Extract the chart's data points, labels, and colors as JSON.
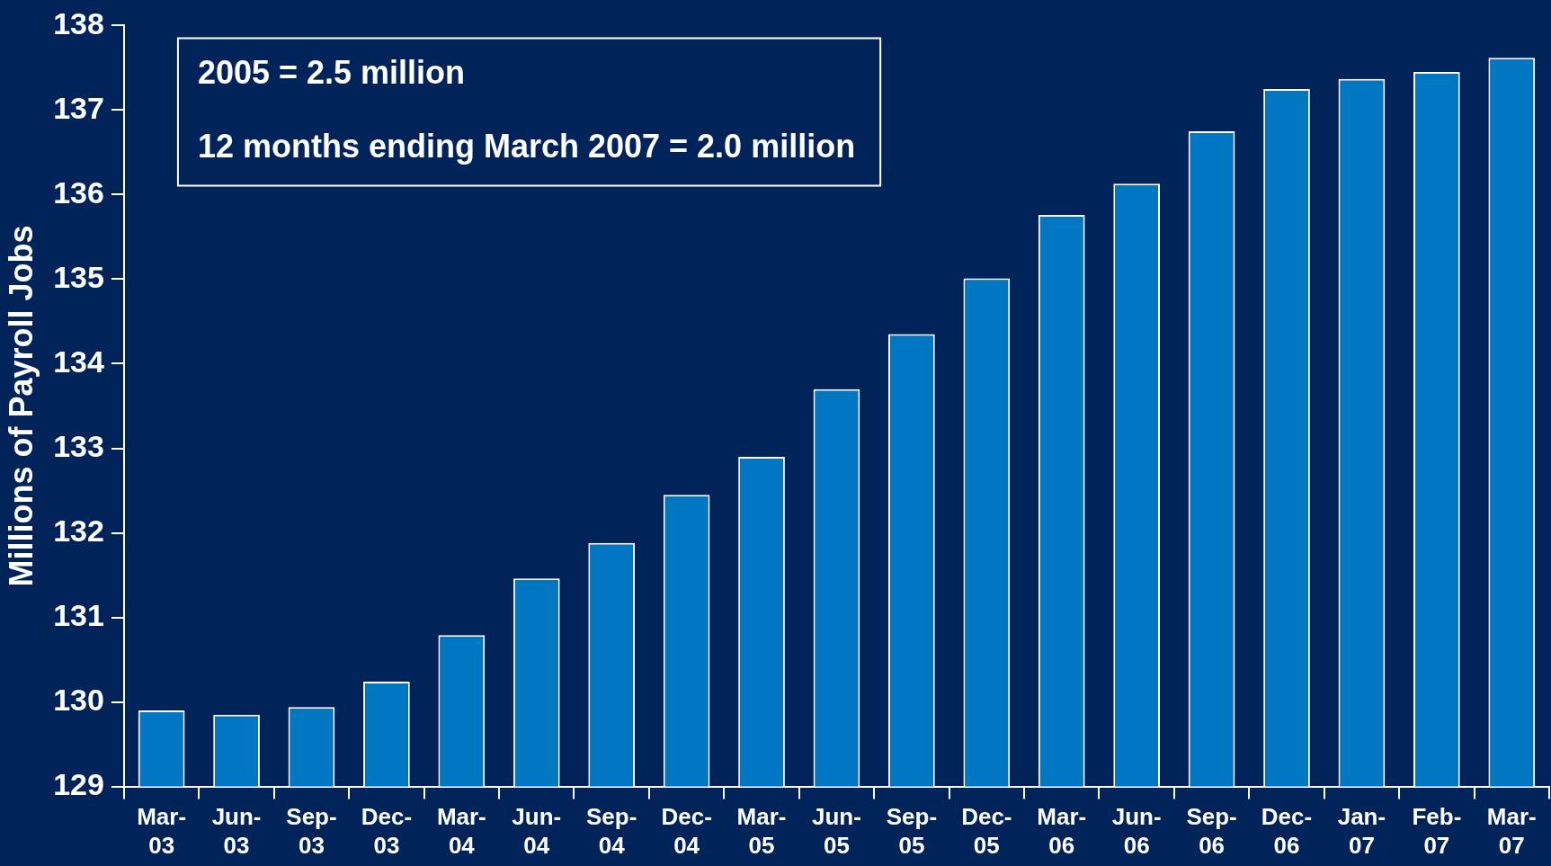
{
  "chart_data": {
    "type": "bar",
    "ylabel": "Millions of Payroll Jobs",
    "categories": [
      "Mar-03",
      "Jun-03",
      "Sep-03",
      "Dec-03",
      "Mar-04",
      "Jun-04",
      "Sep-04",
      "Dec-04",
      "Mar-05",
      "Jun-05",
      "Sep-05",
      "Dec-05",
      "Mar-06",
      "Jun-06",
      "Sep-06",
      "Dec-06",
      "Jan-07",
      "Feb-07",
      "Mar-07"
    ],
    "values": [
      129.9,
      129.85,
      129.94,
      130.24,
      130.79,
      131.46,
      131.88,
      132.45,
      132.9,
      133.7,
      134.35,
      135.01,
      135.76,
      136.13,
      136.75,
      137.25,
      137.37,
      137.45,
      137.62
    ],
    "color": "#0077c0",
    "ylim": [
      129,
      138
    ],
    "yticks": [
      129,
      130,
      131,
      132,
      133,
      134,
      135,
      136,
      137,
      138
    ],
    "grid": false,
    "legend": false,
    "annotations": [
      "2005 = 2.5 million",
      "12 months ending March 2007 = 2.0 million"
    ]
  }
}
